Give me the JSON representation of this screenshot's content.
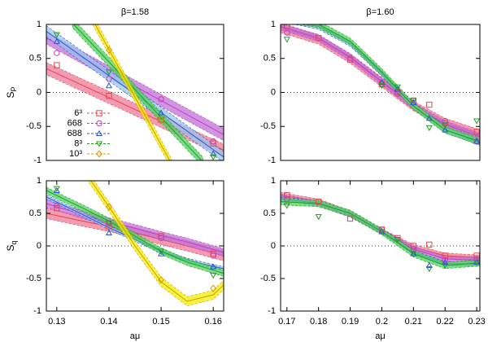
{
  "chart_data": [
    {
      "type": "line",
      "title": "β=1.58",
      "ylabel": "S",
      "ylabel_subscript": "P",
      "xlim": [
        0.128,
        0.162
      ],
      "ylim": [
        -1,
        1
      ],
      "xticks": [],
      "yticks": [
        -1,
        -0.5,
        0,
        0.5,
        1
      ],
      "zero_line": true,
      "legend": "lower left",
      "series": [
        {
          "name": "6³",
          "color": "#e04848",
          "band_color": "#f07898",
          "marker": "square",
          "x": [
            0.13,
            0.14,
            0.15,
            0.16
          ],
          "values": [
            0.4,
            -0.05,
            -0.4,
            -0.75
          ],
          "band": {
            "x": [
              0.128,
              0.162
            ],
            "values": [
              0.35,
              -0.85
            ],
            "error": 0.09
          }
        },
        {
          "name": "668",
          "color": "#c040c0",
          "band_color": "#c070d8",
          "marker": "circle",
          "x": [
            0.13,
            0.14,
            0.15,
            0.16
          ],
          "values": [
            0.58,
            0.2,
            -0.1,
            -0.72
          ],
          "band": {
            "x": [
              0.128,
              0.162
            ],
            "values": [
              0.8,
              -0.62
            ],
            "error": 0.09
          }
        },
        {
          "name": "688",
          "color": "#3050e0",
          "band_color": "#98c8e8",
          "marker": "triangle",
          "x": [
            0.13,
            0.14,
            0.15,
            0.16
          ],
          "values": [
            0.75,
            0.1,
            -0.3,
            -0.9
          ],
          "band": {
            "x": [
              0.128,
              0.162
            ],
            "values": [
              0.9,
              -0.95
            ],
            "error": 0.08
          }
        },
        {
          "name": "8³",
          "color": "#20a020",
          "band_color": "#50d060",
          "marker": "triangle-down",
          "x": [
            0.13,
            0.14,
            0.15,
            0.16
          ],
          "values": [
            0.85,
            0.3,
            -0.42,
            -0.95
          ],
          "band": {
            "x": [
              0.133,
              0.158
            ],
            "values": [
              1.02,
              -1.02
            ],
            "error": 0.07
          }
        },
        {
          "name": "10³",
          "color": "#d89800",
          "band_color": "#f0f000",
          "marker": "diamond",
          "x": [
            0.14,
            0.15
          ],
          "values": [
            0.62,
            -0.4
          ],
          "band": {
            "x": [
              0.137,
              0.152
            ],
            "values": [
              1.05,
              -1.05
            ],
            "error": 0.07
          }
        }
      ]
    },
    {
      "type": "line",
      "title": "β=1.60",
      "xlim": [
        0.168,
        0.231
      ],
      "ylim": [
        -1,
        1
      ],
      "xticks": [],
      "yticks": [
        -1,
        -0.5,
        0,
        0.5,
        1
      ],
      "zero_line": true,
      "series": [
        {
          "color": "#e04848",
          "band_color": "#f07898",
          "marker": "square",
          "x": [
            0.17,
            0.18,
            0.19,
            0.2,
            0.205,
            0.21,
            0.215,
            0.22,
            0.23
          ],
          "values": [
            0.98,
            0.8,
            0.48,
            0.12,
            0.0,
            -0.12,
            -0.18,
            -0.45,
            -0.58
          ],
          "band": {
            "x": [
              0.168,
              0.18,
              0.19,
              0.2,
              0.21,
              0.22,
              0.231
            ],
            "values": [
              0.95,
              0.78,
              0.5,
              0.15,
              -0.2,
              -0.45,
              -0.62
            ],
            "error": 0.07
          }
        },
        {
          "color": "#c040c0",
          "band_color": "#c070d8",
          "marker": "circle",
          "x": [
            0.17,
            0.19,
            0.2,
            0.205,
            0.21,
            0.22,
            0.23
          ],
          "values": [
            0.88,
            0.5,
            0.12,
            -0.02,
            -0.15,
            -0.42,
            -0.72
          ],
          "band": {
            "x": [
              0.168,
              0.18,
              0.19,
              0.2,
              0.21,
              0.22,
              0.231
            ],
            "values": [
              0.97,
              0.8,
              0.52,
              0.16,
              -0.2,
              -0.47,
              -0.65
            ],
            "error": 0.05
          }
        },
        {
          "color": "#3050e0",
          "band_color": "#98c8e8",
          "marker": "triangle",
          "x": [
            0.2,
            0.205,
            0.21,
            0.215,
            0.22,
            0.23
          ],
          "values": [
            0.15,
            0.05,
            -0.15,
            -0.38,
            -0.55,
            -0.72
          ],
          "band": {
            "x": [
              0.168,
              0.18,
              0.19,
              0.2,
              0.21,
              0.22,
              0.231
            ],
            "values": [
              1.08,
              0.97,
              0.72,
              0.28,
              -0.2,
              -0.55,
              -0.74
            ],
            "error": 0.04
          }
        },
        {
          "color": "#20a020",
          "band_color": "#50d060",
          "marker": "triangle-down",
          "x": [
            0.17,
            0.2,
            0.205,
            0.21,
            0.215,
            0.22,
            0.23
          ],
          "values": [
            0.78,
            0.1,
            0.08,
            -0.12,
            -0.52,
            -0.48,
            -0.42
          ],
          "band": {
            "x": [
              0.168,
              0.18,
              0.19,
              0.2,
              0.21,
              0.22,
              0.231
            ],
            "values": [
              1.1,
              1.0,
              0.75,
              0.3,
              -0.2,
              -0.55,
              -0.72
            ],
            "error": 0.05
          }
        }
      ]
    },
    {
      "type": "line",
      "ylabel": "S",
      "ylabel_subscript": "q",
      "xlabel": "aμ",
      "xlim": [
        0.128,
        0.162
      ],
      "ylim": [
        -1,
        1
      ],
      "xticks": [
        0.13,
        0.14,
        0.15,
        0.16
      ],
      "yticks": [
        -1,
        -0.5,
        0,
        0.5,
        1
      ],
      "zero_line": true,
      "series": [
        {
          "color": "#e04848",
          "band_color": "#f07898",
          "marker": "square",
          "x": [
            0.13,
            0.14,
            0.15,
            0.16
          ],
          "values": [
            0.58,
            0.3,
            0.15,
            -0.12
          ],
          "band": {
            "x": [
              0.128,
              0.135,
              0.14,
              0.145,
              0.15,
              0.155,
              0.162
            ],
            "values": [
              0.5,
              0.38,
              0.3,
              0.2,
              0.1,
              0.0,
              -0.15
            ],
            "error": 0.08
          }
        },
        {
          "color": "#c040c0",
          "band_color": "#c070d8",
          "marker": "circle",
          "x": [
            0.13,
            0.14,
            0.15,
            0.16
          ],
          "values": [
            0.62,
            0.35,
            0.12,
            -0.15
          ],
          "band": {
            "x": [
              0.128,
              0.135,
              0.14,
              0.145,
              0.15,
              0.155,
              0.162
            ],
            "values": [
              0.65,
              0.48,
              0.37,
              0.27,
              0.16,
              0.06,
              -0.1
            ],
            "error": 0.06
          }
        },
        {
          "color": "#3050e0",
          "band_color": "#98c8e8",
          "marker": "triangle",
          "x": [
            0.13,
            0.14,
            0.15,
            0.16
          ],
          "values": [
            0.85,
            0.2,
            -0.12,
            -0.32
          ],
          "band": {
            "x": [
              0.128,
              0.135,
              0.14,
              0.145,
              0.15,
              0.155,
              0.162
            ],
            "values": [
              0.75,
              0.48,
              0.28,
              0.1,
              -0.08,
              -0.22,
              -0.35
            ],
            "error": 0.03
          }
        },
        {
          "color": "#20a020",
          "band_color": "#50d060",
          "marker": "triangle-down",
          "x": [
            0.13,
            0.14,
            0.15,
            0.16
          ],
          "values": [
            0.88,
            0.35,
            -0.08,
            -0.45
          ],
          "band": {
            "x": [
              0.128,
              0.135,
              0.14,
              0.145,
              0.15,
              0.155,
              0.162
            ],
            "values": [
              0.85,
              0.58,
              0.38,
              0.15,
              -0.08,
              -0.25,
              -0.42
            ],
            "error": 0.05
          }
        },
        {
          "color": "#d89800",
          "band_color": "#f0f000",
          "marker": "diamond",
          "x": [
            0.14,
            0.15,
            0.16
          ],
          "values": [
            0.6,
            -0.52,
            -0.65
          ],
          "band": {
            "x": [
              0.133,
              0.137,
              0.14,
              0.145,
              0.15,
              0.155,
              0.16,
              0.162
            ],
            "values": [
              1.4,
              0.95,
              0.6,
              0.0,
              -0.55,
              -0.85,
              -0.75,
              -0.6
            ],
            "error": 0.07
          }
        }
      ]
    },
    {
      "type": "line",
      "xlabel": "aμ",
      "xlim": [
        0.168,
        0.231
      ],
      "ylim": [
        -1,
        1
      ],
      "xticks": [
        0.17,
        0.18,
        0.19,
        0.2,
        0.21,
        0.22,
        0.23
      ],
      "yticks": [
        -1,
        -0.5,
        0,
        0.5,
        1
      ],
      "zero_line": true,
      "series": [
        {
          "color": "#e04848",
          "band_color": "#f07898",
          "marker": "square",
          "x": [
            0.17,
            0.18,
            0.19,
            0.2,
            0.205,
            0.21,
            0.215,
            0.22,
            0.23
          ],
          "values": [
            0.78,
            0.68,
            0.42,
            0.25,
            0.12,
            0.0,
            0.02,
            -0.15,
            -0.15
          ],
          "band": {
            "x": [
              0.168,
              0.18,
              0.19,
              0.2,
              0.21,
              0.22,
              0.231
            ],
            "values": [
              0.78,
              0.68,
              0.5,
              0.22,
              -0.02,
              -0.15,
              -0.18
            ],
            "error": 0.04
          }
        },
        {
          "color": "#c040c0",
          "band_color": "#c070d8",
          "marker": "circle",
          "x": [
            0.17,
            0.2,
            0.21,
            0.22,
            0.23
          ],
          "values": [
            0.72,
            0.25,
            -0.05,
            -0.22,
            -0.2
          ],
          "band": {
            "x": [
              0.168,
              0.18,
              0.19,
              0.2,
              0.21,
              0.22,
              0.231
            ],
            "values": [
              0.75,
              0.65,
              0.48,
              0.22,
              -0.05,
              -0.2,
              -0.22
            ],
            "error": 0.04
          }
        },
        {
          "color": "#3050e0",
          "band_color": "#98c8e8",
          "marker": "triangle",
          "x": [
            0.2,
            0.21,
            0.215,
            0.22,
            0.23
          ],
          "values": [
            0.22,
            -0.12,
            -0.3,
            -0.25,
            -0.25
          ],
          "band": {
            "x": [
              0.168,
              0.18,
              0.19,
              0.2,
              0.21,
              0.22,
              0.231
            ],
            "values": [
              0.72,
              0.66,
              0.5,
              0.22,
              -0.1,
              -0.27,
              -0.28
            ],
            "error": 0.03
          }
        },
        {
          "color": "#20a020",
          "band_color": "#50d060",
          "marker": "triangle-down",
          "x": [
            0.17,
            0.18,
            0.2,
            0.205,
            0.21,
            0.215,
            0.22,
            0.23
          ],
          "values": [
            0.62,
            0.45,
            0.22,
            0.1,
            -0.12,
            -0.35,
            -0.3,
            -0.25
          ],
          "band": {
            "x": [
              0.168,
              0.18,
              0.19,
              0.2,
              0.21,
              0.22,
              0.231
            ],
            "values": [
              0.68,
              0.65,
              0.5,
              0.22,
              -0.12,
              -0.3,
              -0.26
            ],
            "error": 0.05
          }
        }
      ]
    }
  ]
}
